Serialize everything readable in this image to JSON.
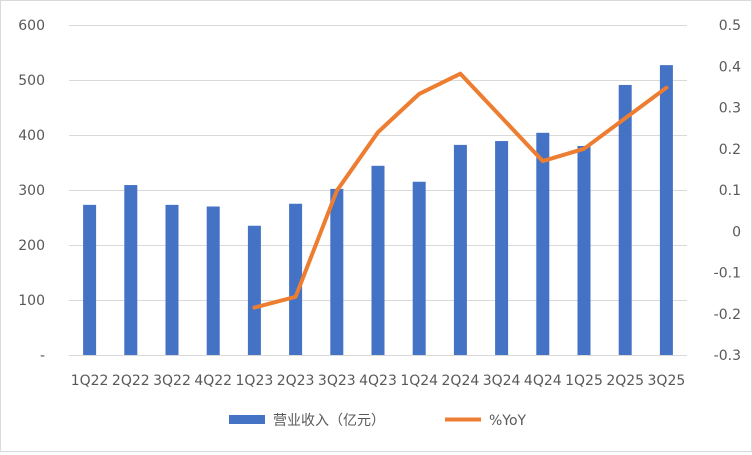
{
  "chart_data": {
    "type": "bar",
    "categories": [
      "1Q22",
      "2Q22",
      "3Q22",
      "4Q22",
      "1Q23",
      "2Q23",
      "3Q23",
      "4Q23",
      "1Q24",
      "2Q24",
      "3Q24",
      "4Q24",
      "1Q25",
      "2Q25",
      "3Q25"
    ],
    "series": [
      {
        "name": "营业收入（亿元）",
        "type": "bar",
        "axis": "left",
        "color": "#4472C4",
        "values": [
          273,
          309,
          273,
          270,
          235,
          275,
          302,
          344,
          315,
          382,
          389,
          404,
          380,
          491,
          527
        ]
      },
      {
        "name": "%YoY",
        "type": "line",
        "axis": "right",
        "color": "#ED7D31",
        "values": [
          null,
          null,
          null,
          null,
          -0.185,
          -0.159,
          0.098,
          0.24,
          0.333,
          0.382,
          null,
          0.17,
          0.2,
          null,
          0.348
        ]
      }
    ],
    "y_left": {
      "range": [
        0,
        600
      ],
      "ticks": [
        0,
        100,
        200,
        300,
        400,
        500,
        600
      ],
      "tick_labels": [
        "-",
        "100",
        "200",
        "300",
        "400",
        "500",
        "600"
      ]
    },
    "y_right": {
      "range": [
        -0.3,
        0.5
      ],
      "ticks": [
        -0.3,
        -0.2,
        -0.1,
        0,
        0.1,
        0.2,
        0.3,
        0.4,
        0.5
      ],
      "tick_labels": [
        "-0.3",
        "-0.2",
        "-0.1",
        "0",
        "0.1",
        "0.2",
        "0.3",
        "0.4",
        "0.5"
      ]
    },
    "title": "",
    "xlabel": "",
    "ylabel": "",
    "grid": true,
    "legend": "bottom"
  }
}
